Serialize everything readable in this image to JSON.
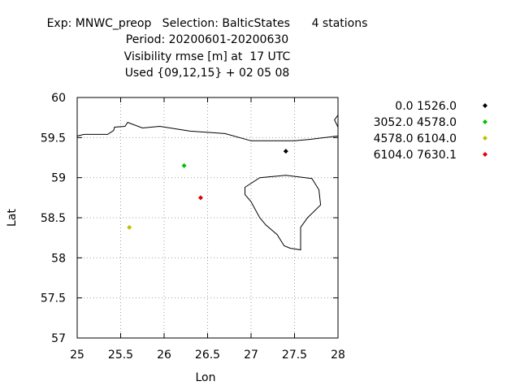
{
  "header": {
    "line1": "Exp: MNWC_preop   Selection: BalticStates      4 stations",
    "line2": "Period: 20200601-20200630",
    "line3": "Visibility rmse [m] at  17 UTC",
    "line4": "Used {09,12,15} + 02 05 08"
  },
  "chart_data": {
    "type": "scatter",
    "title": "Exp: MNWC_preop   Selection: BalticStates      4 stations",
    "xlabel": "Lon",
    "ylabel": "Lat",
    "xlim": [
      25,
      28
    ],
    "ylim": [
      57,
      60
    ],
    "x_ticks": [
      "25",
      "25.5",
      "26",
      "26.5",
      "27",
      "27.5",
      "28"
    ],
    "y_ticks": [
      "57",
      "57.5",
      "58",
      "58.5",
      "59",
      "59.5",
      "60"
    ],
    "grid": true,
    "legend_position": "right",
    "series": [
      {
        "name": "0.0 1526.0",
        "color": "#000000",
        "points": [
          {
            "x": 27.4,
            "y": 59.33
          }
        ]
      },
      {
        "name": "3052.0 4578.0",
        "color": "#00c000",
        "points": [
          {
            "x": 26.23,
            "y": 59.15
          }
        ]
      },
      {
        "name": "4578.0 6104.0",
        "color": "#c0c000",
        "points": [
          {
            "x": 25.6,
            "y": 58.38
          }
        ]
      },
      {
        "name": "6104.0 7630.1",
        "color": "#e00000",
        "points": [
          {
            "x": 26.42,
            "y": 58.75
          }
        ]
      }
    ],
    "coastline": [
      [
        [
          25.0,
          59.52
        ],
        [
          25.08,
          59.54
        ],
        [
          25.35,
          59.54
        ],
        [
          25.42,
          59.59
        ],
        [
          25.43,
          59.63
        ],
        [
          25.55,
          59.64
        ],
        [
          25.58,
          59.69
        ],
        [
          25.75,
          59.62
        ],
        [
          25.95,
          59.64
        ],
        [
          26.3,
          59.58
        ],
        [
          26.7,
          59.55
        ],
        [
          27.0,
          59.46
        ],
        [
          27.5,
          59.46
        ],
        [
          27.7,
          59.48
        ],
        [
          28.0,
          59.52
        ]
      ],
      [
        [
          28.0,
          59.78
        ],
        [
          27.96,
          59.72
        ],
        [
          28.0,
          59.63
        ]
      ],
      [
        [
          26.93,
          58.88
        ],
        [
          27.1,
          59.0
        ],
        [
          27.4,
          59.03
        ],
        [
          27.7,
          58.99
        ],
        [
          27.78,
          58.85
        ],
        [
          27.8,
          58.66
        ],
        [
          27.65,
          58.5
        ],
        [
          27.57,
          58.38
        ],
        [
          27.57,
          58.1
        ],
        [
          27.45,
          58.12
        ],
        [
          27.38,
          58.15
        ],
        [
          27.3,
          58.29
        ],
        [
          27.17,
          58.41
        ],
        [
          27.1,
          58.5
        ],
        [
          27.0,
          58.7
        ],
        [
          26.93,
          58.79
        ],
        [
          26.93,
          58.88
        ]
      ]
    ]
  }
}
